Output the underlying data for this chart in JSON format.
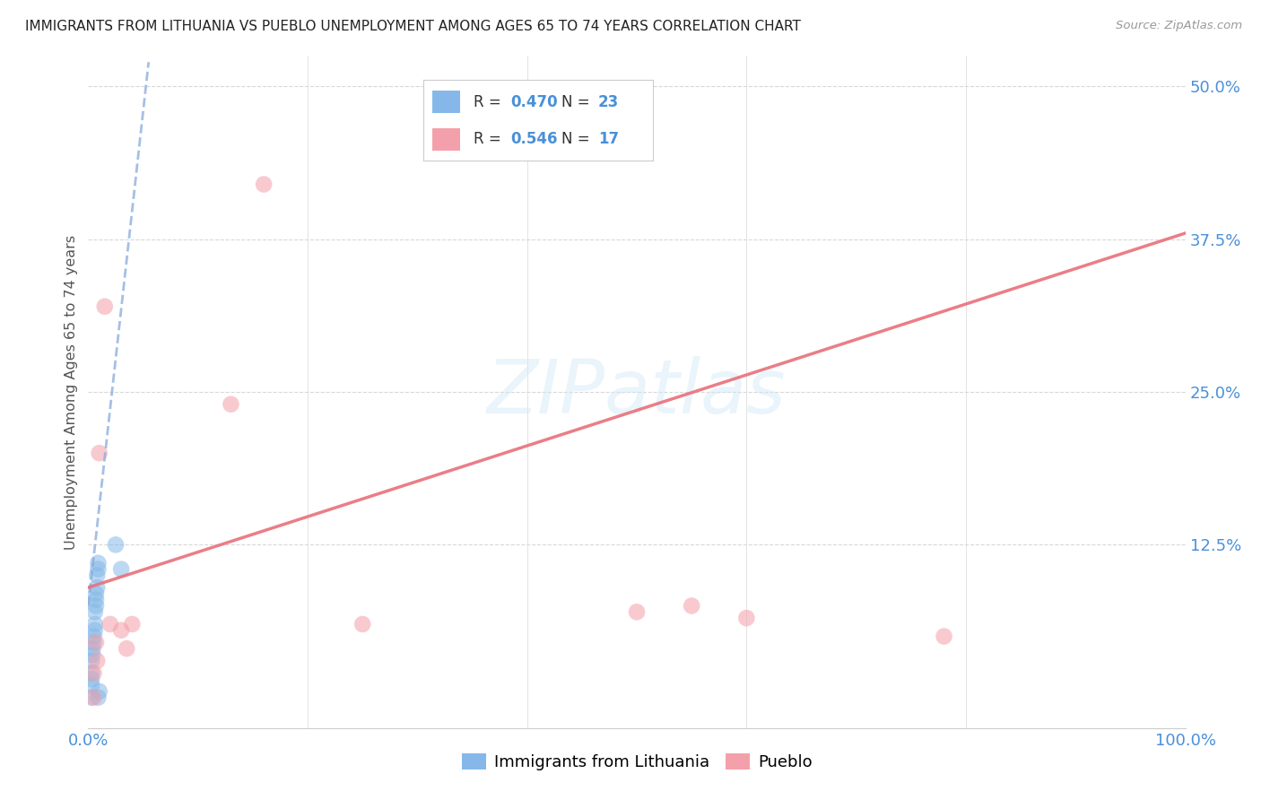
{
  "title": "IMMIGRANTS FROM LITHUANIA VS PUEBLO UNEMPLOYMENT AMONG AGES 65 TO 74 YEARS CORRELATION CHART",
  "source": "Source: ZipAtlas.com",
  "ylabel": "Unemployment Among Ages 65 to 74 years",
  "xlim": [
    0,
    1.0
  ],
  "ylim": [
    -0.025,
    0.525
  ],
  "blue_R": 0.47,
  "blue_N": 23,
  "pink_R": 0.546,
  "pink_N": 17,
  "blue_color": "#85b8e8",
  "pink_color": "#f4a0aa",
  "blue_line_color": "#88aadd",
  "pink_line_color": "#e8707a",
  "blue_scatter_x": [
    0.003,
    0.003,
    0.003,
    0.003,
    0.003,
    0.004,
    0.004,
    0.005,
    0.005,
    0.006,
    0.006,
    0.006,
    0.007,
    0.007,
    0.007,
    0.008,
    0.008,
    0.009,
    0.009,
    0.009,
    0.01,
    0.025,
    0.03
  ],
  "blue_scatter_y": [
    0.0,
    0.01,
    0.015,
    0.02,
    0.03,
    0.035,
    0.04,
    0.045,
    0.05,
    0.055,
    0.06,
    0.07,
    0.075,
    0.08,
    0.085,
    0.09,
    0.1,
    0.105,
    0.11,
    0.0,
    0.005,
    0.125,
    0.105
  ],
  "pink_scatter_x": [
    0.005,
    0.005,
    0.007,
    0.008,
    0.01,
    0.015,
    0.02,
    0.03,
    0.035,
    0.04,
    0.13,
    0.16,
    0.25,
    0.5,
    0.55,
    0.6,
    0.78
  ],
  "pink_scatter_y": [
    0.0,
    0.02,
    0.045,
    0.03,
    0.2,
    0.32,
    0.06,
    0.055,
    0.04,
    0.06,
    0.24,
    0.42,
    0.06,
    0.07,
    0.075,
    0.065,
    0.05
  ],
  "watermark_text": "ZIPatlas",
  "background_color": "#ffffff",
  "grid_color": "#d8d8d8",
  "tick_color": "#4a90d9",
  "label_color": "#555555",
  "legend_label_blue": "Immigrants from Lithuania",
  "legend_label_pink": "Pueblo"
}
